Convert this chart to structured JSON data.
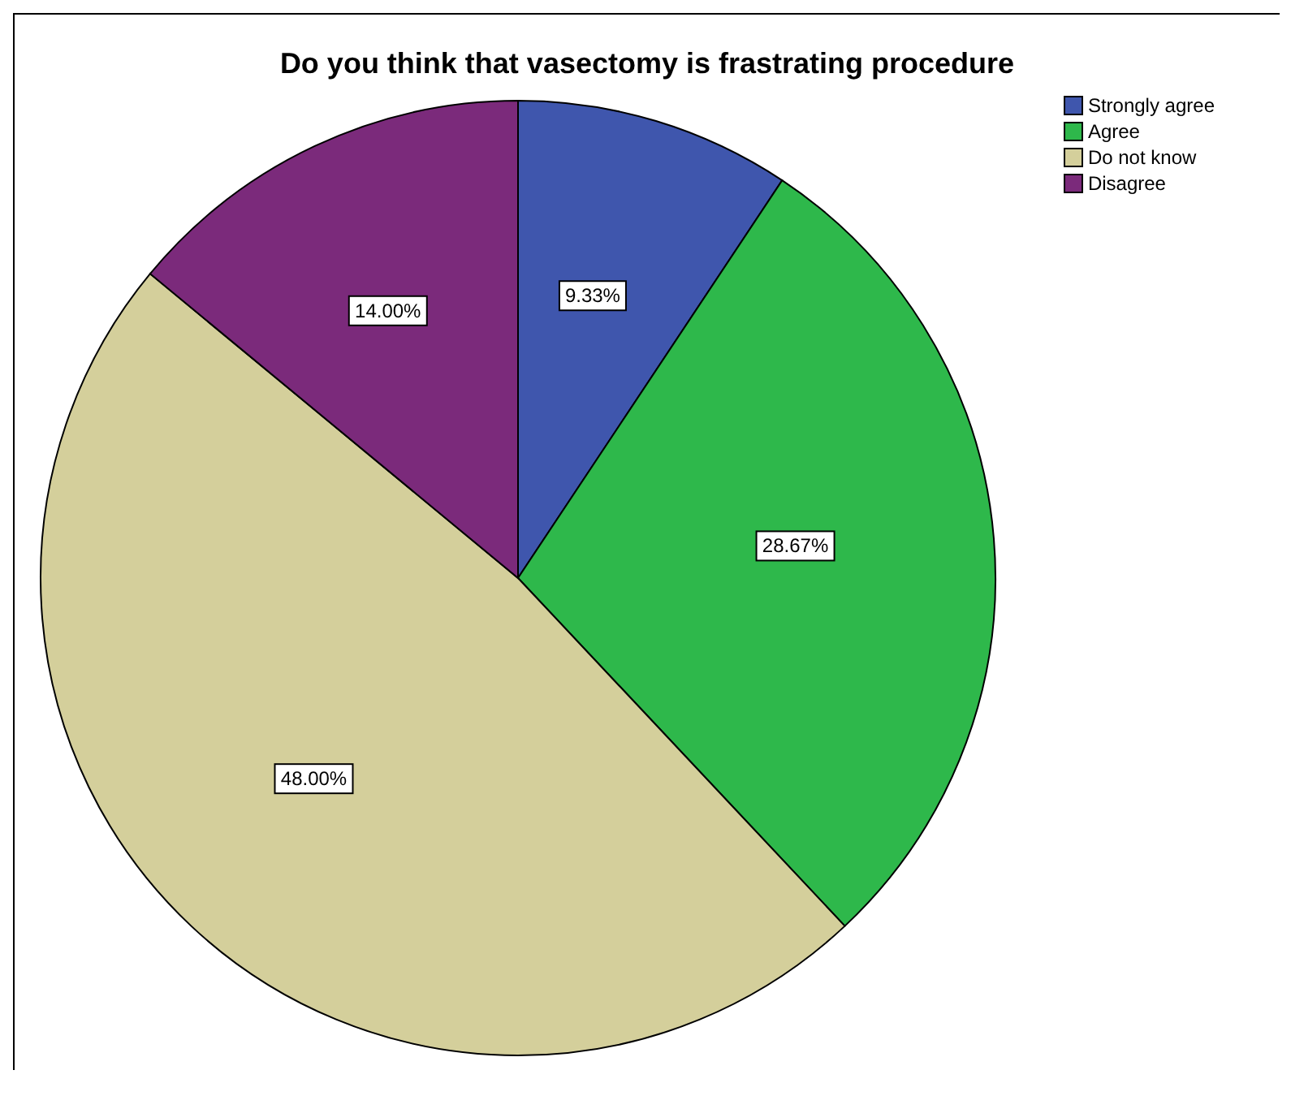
{
  "chart_data": {
    "type": "pie",
    "title": "Do you think that vasectomy is frastrating procedure",
    "categories": [
      "Strongly agree",
      "Agree",
      "Do not know",
      "Disagree"
    ],
    "values": [
      9.33,
      28.67,
      48.0,
      14.0
    ],
    "value_labels": [
      "9.33%",
      "28.67%",
      "48.00%",
      "14.00%"
    ],
    "colors": [
      "#3f56ad",
      "#2eb84b",
      "#d4cf9b",
      "#7b2a7b"
    ],
    "legend": "top right"
  }
}
